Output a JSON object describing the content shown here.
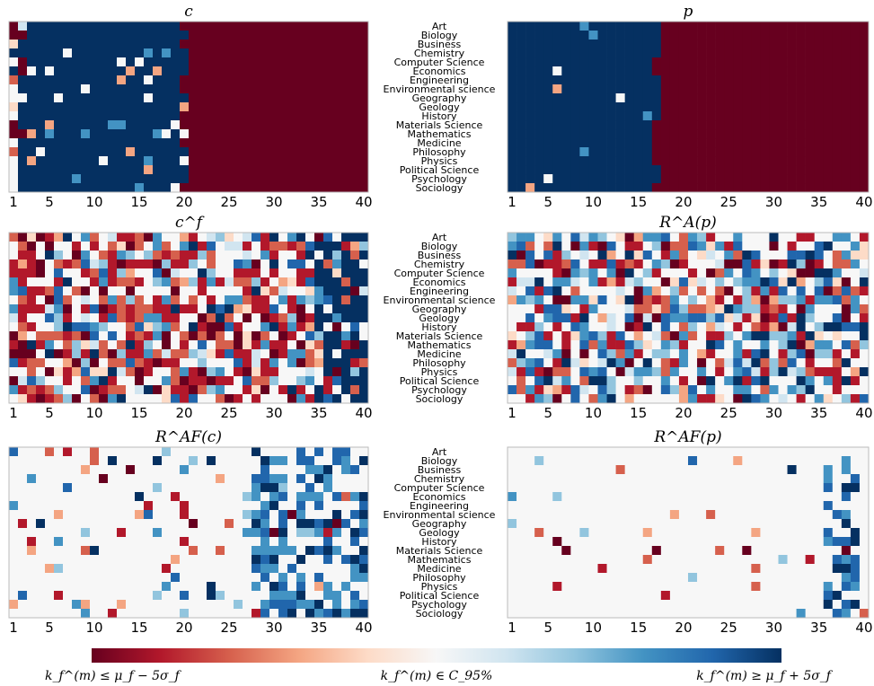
{
  "categories": [
    "Art",
    "Biology",
    "Business",
    "Chemistry",
    "Computer Science",
    "Economics",
    "Engineering",
    "Environmental science",
    "Geography",
    "Geology",
    "History",
    "Materials Science",
    "Mathematics",
    "Medicine",
    "Philosophy",
    "Physics",
    "Political Science",
    "Psychology",
    "Sociology"
  ],
  "colorbar": {
    "min_label": "k_f^(m) ≤ μ_f − 5σ_f",
    "mid_label": "k_f^(m) ∈ C_95%",
    "max_label": "k_f^(m) ≥ μ_f + 5σ_f",
    "colors": [
      "#67001f",
      "#b2182b",
      "#d6604d",
      "#f4a582",
      "#fddbc7",
      "#f7f7f7",
      "#d1e5f0",
      "#92c5de",
      "#4393c3",
      "#2166ac",
      "#053061"
    ]
  },
  "chart_data": [
    {
      "type": "heatmap",
      "title": "c",
      "x": [
        1,
        40
      ],
      "xticks": [
        1,
        5,
        10,
        15,
        20,
        25,
        30,
        35,
        40
      ],
      "rows": 19,
      "pattern": "wave",
      "params": {
        "blueStart": 3,
        "blueEnd": 20,
        "redStart": 21,
        "noise": 0.5
      }
    },
    {
      "type": "heatmap",
      "title": "p",
      "x": [
        1,
        40
      ],
      "xticks": [
        1,
        5,
        10,
        15,
        20,
        25,
        30,
        35,
        40
      ],
      "rows": 19,
      "pattern": "wave",
      "params": {
        "blueStart": 1,
        "blueEnd": 17,
        "redStart": 18,
        "noise": 0.15
      }
    },
    {
      "type": "heatmap",
      "title": "c^f",
      "x": [
        1,
        40
      ],
      "xticks": [
        1,
        5,
        10,
        15,
        20,
        25,
        30,
        35,
        40
      ],
      "rows": 19,
      "pattern": "mixed",
      "params": {
        "red": 0.45,
        "blue": 0.2,
        "blueCols": [
          35,
          40
        ]
      }
    },
    {
      "type": "heatmap",
      "title": "R^A(p)",
      "x": [
        1,
        40
      ],
      "xticks": [
        1,
        5,
        10,
        15,
        20,
        25,
        30,
        35,
        40
      ],
      "rows": 19,
      "pattern": "mixed",
      "params": {
        "red": 0.25,
        "blue": 0.35,
        "blueCols": []
      }
    },
    {
      "type": "heatmap",
      "title": "R^AF(c)",
      "x": [
        1,
        40
      ],
      "xticks": [
        1,
        5,
        10,
        15,
        20,
        25,
        30,
        35,
        40
      ],
      "rows": 19,
      "pattern": "sparse",
      "params": {
        "density": 0.12,
        "blueCols": [
          28,
          40
        ]
      }
    },
    {
      "type": "heatmap",
      "title": "R^AF(p)",
      "x": [
        1,
        40
      ],
      "xticks": [
        1,
        5,
        10,
        15,
        20,
        25,
        30,
        35,
        40
      ],
      "rows": 19,
      "pattern": "sparse",
      "params": {
        "density": 0.05,
        "blueCols": [
          36,
          39
        ]
      }
    }
  ]
}
